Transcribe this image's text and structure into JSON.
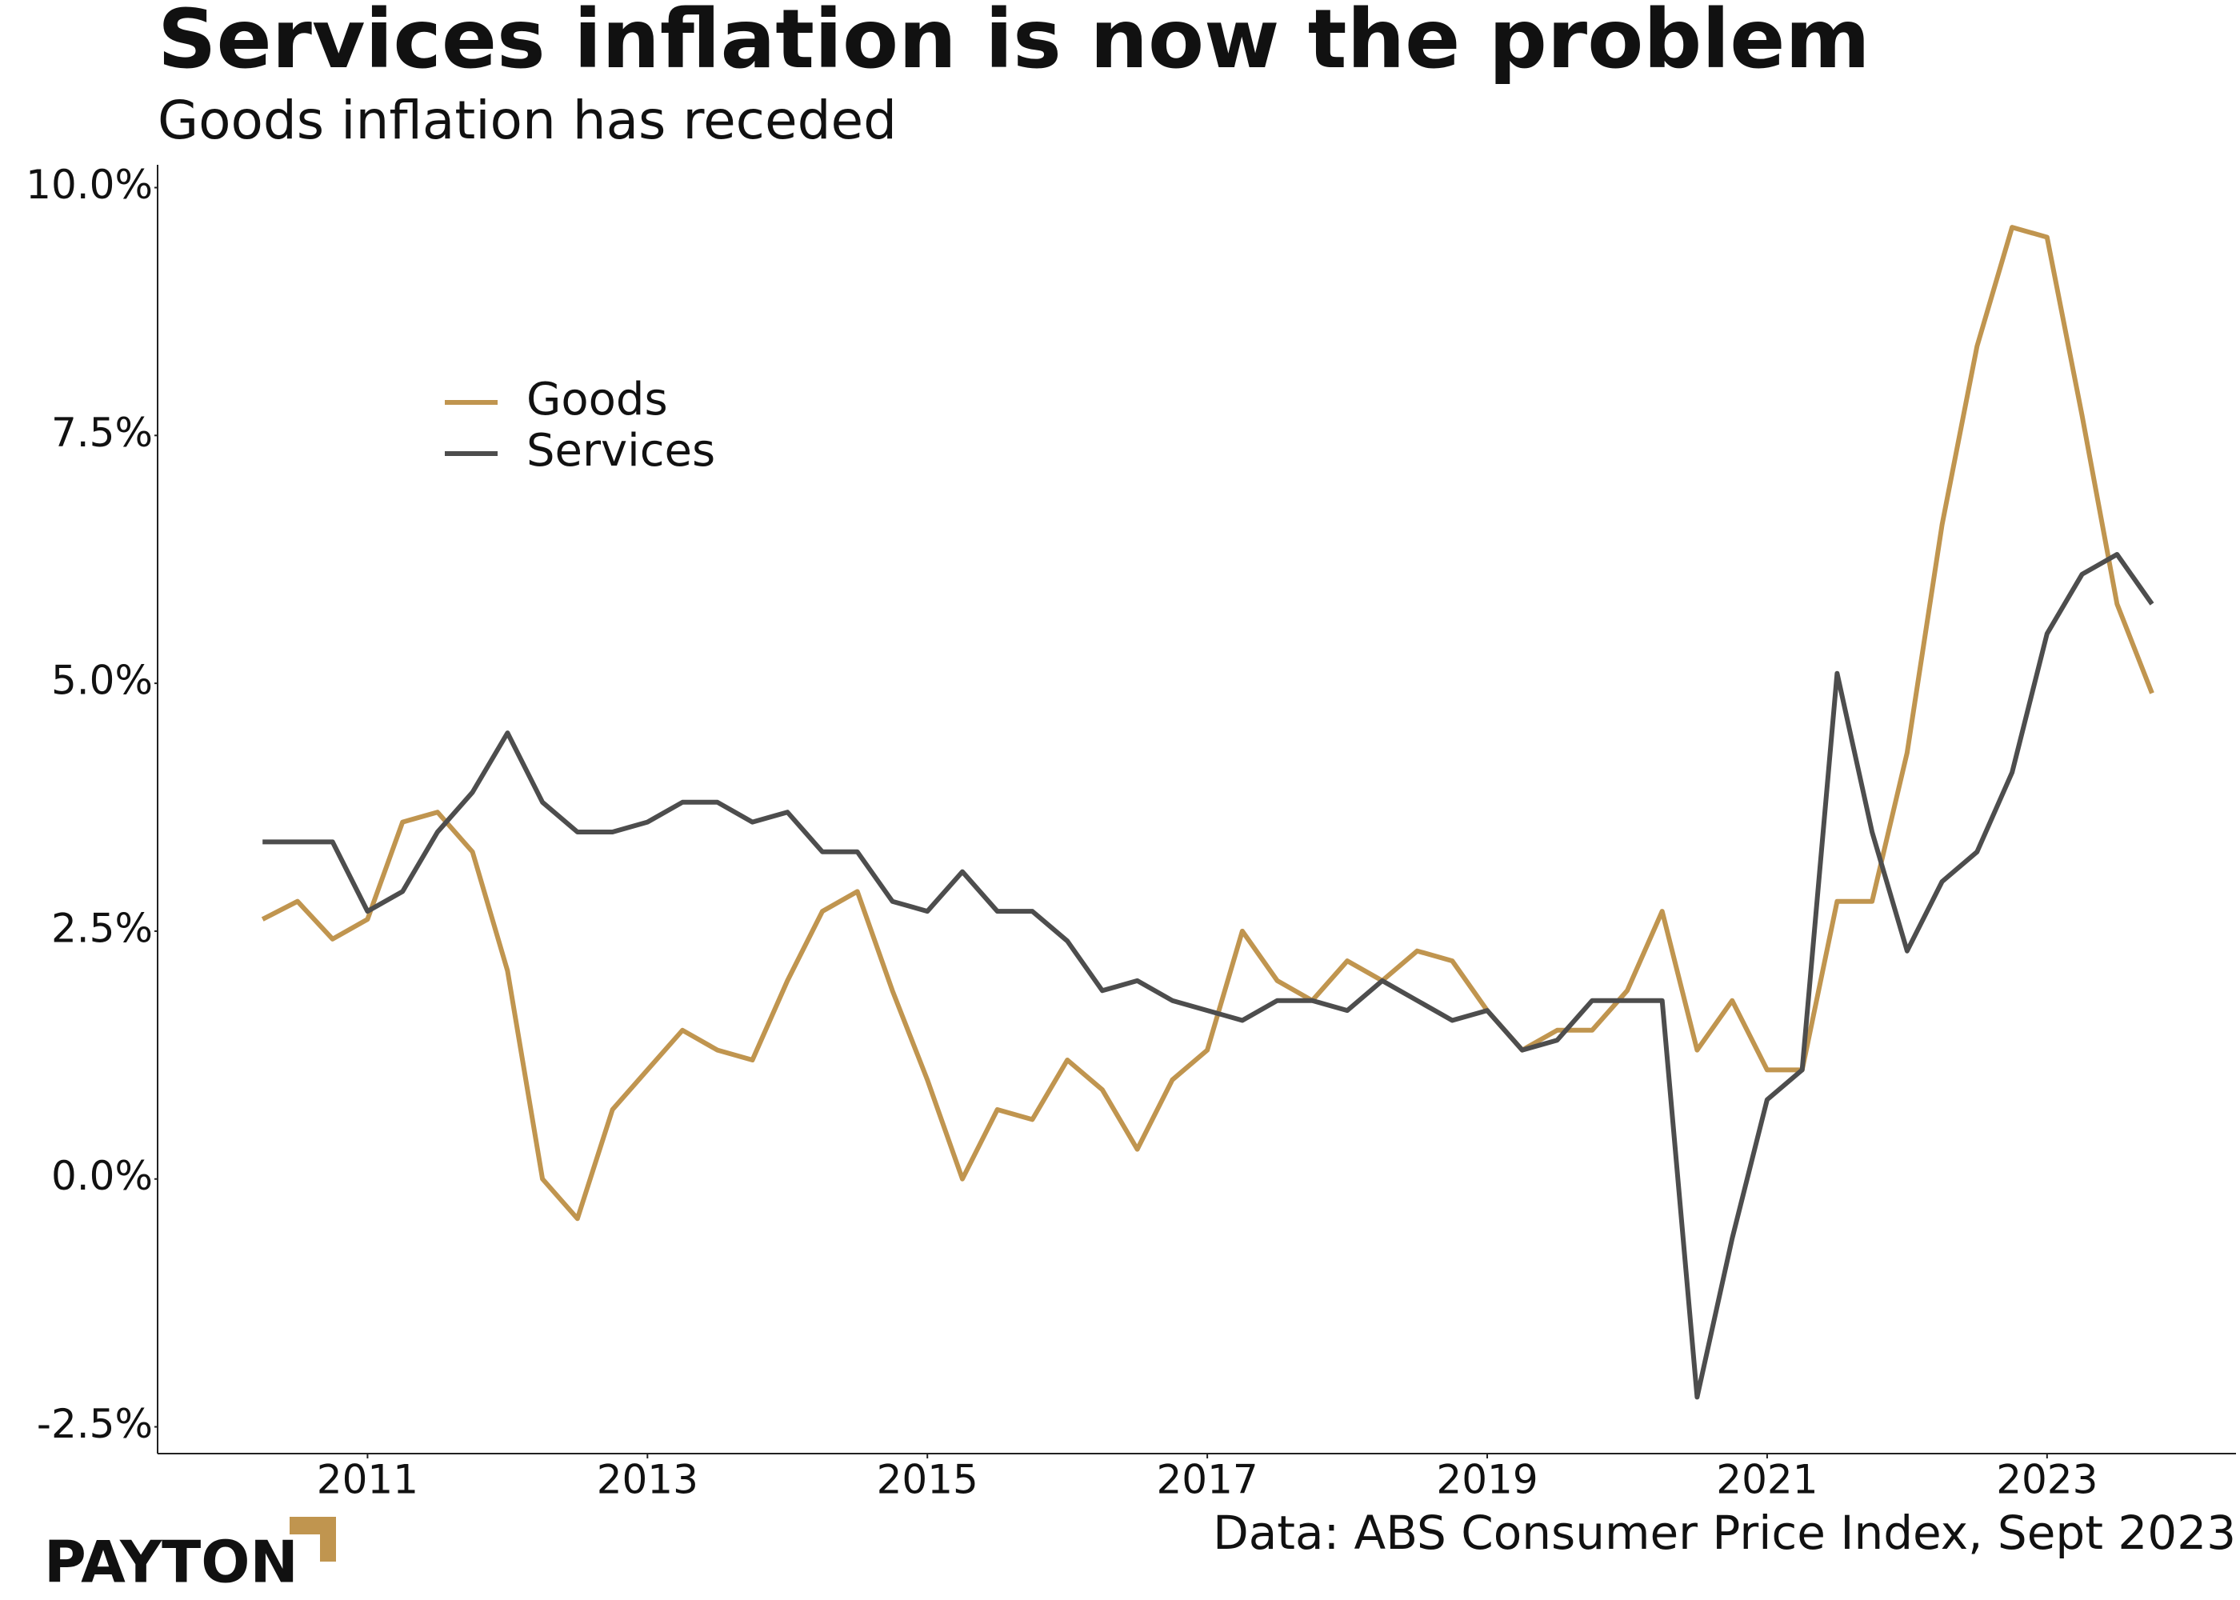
{
  "chart_data": {
    "type": "line",
    "title": "Services inflation is now the problem",
    "subtitle": "Goods inflation has receded",
    "source": "Data: ABS Consumer Price Index, Sept 2023",
    "brand": "PAYTON",
    "x": [
      2010.25,
      2010.5,
      2010.75,
      2011,
      2011.25,
      2011.5,
      2011.75,
      2012,
      2012.25,
      2012.5,
      2012.75,
      2013,
      2013.25,
      2013.5,
      2013.75,
      2014,
      2014.25,
      2014.5,
      2014.75,
      2015,
      2015.25,
      2015.5,
      2015.75,
      2016,
      2016.25,
      2016.5,
      2016.75,
      2017,
      2017.25,
      2017.5,
      2017.75,
      2018,
      2018.25,
      2018.5,
      2018.75,
      2019,
      2019.25,
      2019.5,
      2019.75,
      2020,
      2020.25,
      2020.5,
      2020.75,
      2021,
      2021.25,
      2021.5,
      2021.75,
      2022,
      2022.25,
      2022.5,
      2022.75,
      2023,
      2023.25,
      2023.5,
      2023.75
    ],
    "series": [
      {
        "name": "Goods",
        "color": "#c0954f",
        "values": [
          2.62,
          2.8,
          2.42,
          2.62,
          3.6,
          3.7,
          3.3,
          2.1,
          0.0,
          -0.4,
          0.7,
          1.1,
          1.5,
          1.3,
          1.2,
          2.0,
          2.7,
          2.9,
          1.9,
          1.0,
          0.0,
          0.7,
          0.6,
          1.2,
          0.9,
          0.3,
          1.0,
          1.3,
          2.5,
          2.0,
          1.8,
          2.2,
          2.0,
          2.3,
          2.2,
          1.7,
          1.3,
          1.5,
          1.5,
          1.9,
          2.7,
          1.3,
          1.8,
          1.1,
          1.1,
          2.8,
          2.8,
          4.3,
          6.6,
          8.4,
          9.6,
          9.5,
          7.7,
          5.8,
          4.9
        ]
      },
      {
        "name": "Services",
        "color": "#4d4d4d",
        "values": [
          3.4,
          3.4,
          3.4,
          2.7,
          2.9,
          3.5,
          3.9,
          4.5,
          3.8,
          3.5,
          3.5,
          3.6,
          3.8,
          3.8,
          3.6,
          3.7,
          3.3,
          3.3,
          2.8,
          2.7,
          3.1,
          2.7,
          2.7,
          2.4,
          1.9,
          2.0,
          1.8,
          1.7,
          1.6,
          1.8,
          1.8,
          1.7,
          2.0,
          1.8,
          1.6,
          1.7,
          1.3,
          1.4,
          1.8,
          1.8,
          1.8,
          -2.2,
          -0.6,
          0.8,
          1.1,
          5.1,
          3.5,
          2.3,
          3.0,
          3.3,
          4.1,
          5.5,
          6.1,
          6.3,
          5.8
        ]
      }
    ],
    "xlim": [
      2009.5,
      2024.35
    ],
    "xticks": [
      2011,
      2013,
      2015,
      2017,
      2019,
      2021,
      2023
    ],
    "ylim": [
      -2.77,
      10.23
    ],
    "yticks": [
      {
        "value": -2.5,
        "label": "-2.5%"
      },
      {
        "value": 0,
        "label": "0.0%"
      },
      {
        "value": 2.5,
        "label": "2.5%"
      },
      {
        "value": 5,
        "label": "5.0%"
      },
      {
        "value": 7.5,
        "label": "7.5%"
      },
      {
        "value": 10,
        "label": "10.0%"
      }
    ],
    "grid": false
  }
}
